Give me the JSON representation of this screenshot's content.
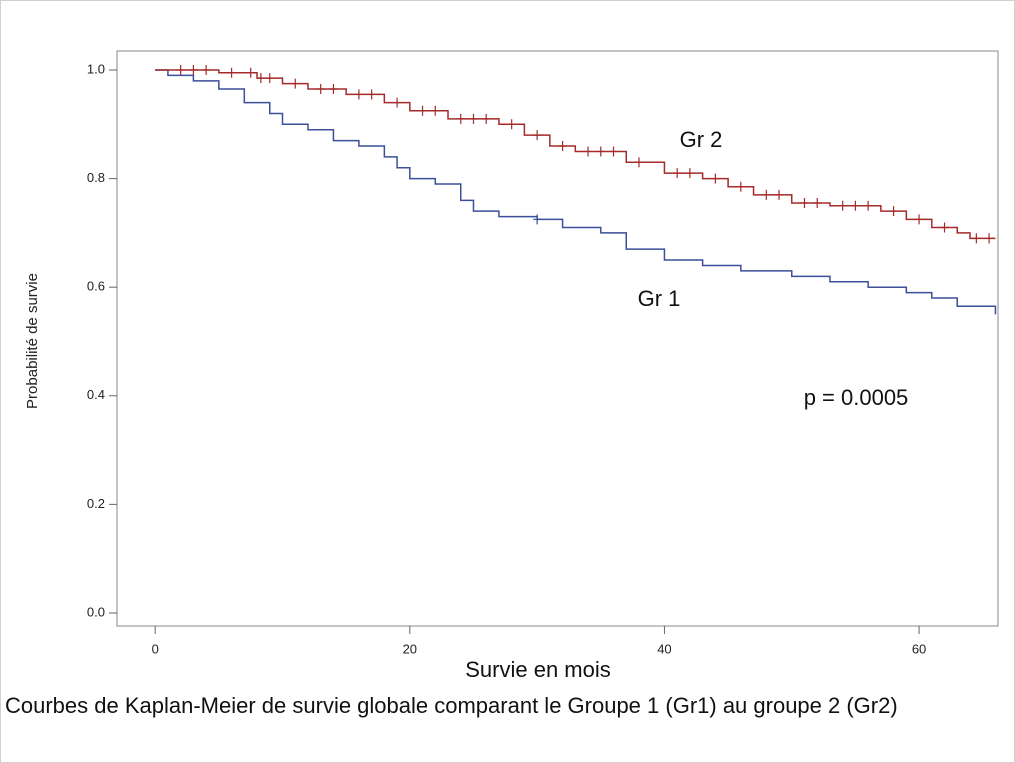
{
  "chart_data": {
    "type": "line",
    "drawstyle": "steps-post",
    "xlabel": "Survie en mois",
    "ylabel": "Probabilité de survie",
    "caption": "Courbes de Kaplan-Meier de survie globale comparant le Groupe 1 (Gr1) au groupe 2 (Gr2)",
    "annotations": [
      "Gr 2",
      "Gr 1",
      "p = 0.0005"
    ],
    "xlim": [
      -3,
      66.2
    ],
    "ylim": [
      -0.024,
      1.035
    ],
    "xticks": [
      0,
      20,
      40,
      60
    ],
    "yticks": [
      {
        "value": 0,
        "label": "0.0"
      },
      {
        "value": 0.2,
        "label": "0.2"
      },
      {
        "value": 0.4,
        "label": "0.4"
      },
      {
        "value": 0.6,
        "label": "0.6"
      },
      {
        "value": 0.8,
        "label": "0.8"
      },
      {
        "value": 1,
        "label": "1.0"
      }
    ],
    "series": [
      {
        "color": "#3b4f9a",
        "x": [
          0,
          1,
          3,
          5,
          7,
          9,
          10,
          12,
          14,
          16,
          18,
          19,
          20,
          22,
          24,
          25,
          27,
          30,
          32,
          35,
          37,
          40,
          43,
          46,
          50,
          53,
          56,
          59,
          61,
          63,
          66
        ],
        "values": [
          1.0,
          0.99,
          0.98,
          0.965,
          0.94,
          0.92,
          0.9,
          0.89,
          0.87,
          0.86,
          0.84,
          0.82,
          0.8,
          0.79,
          0.76,
          0.74,
          0.73,
          0.725,
          0.71,
          0.7,
          0.67,
          0.65,
          0.64,
          0.63,
          0.62,
          0.61,
          0.6,
          0.59,
          0.58,
          0.565,
          0.55
        ],
        "censored": [
          30
        ]
      },
      {
        "color": "#a52a2a",
        "x": [
          0,
          5,
          8,
          10,
          12,
          15,
          18,
          20,
          23,
          27,
          29,
          31,
          33,
          37,
          40,
          43,
          45,
          47,
          50,
          53,
          57,
          59,
          61,
          63,
          64,
          66
        ],
        "values": [
          1.0,
          0.995,
          0.985,
          0.975,
          0.965,
          0.955,
          0.94,
          0.925,
          0.91,
          0.9,
          0.88,
          0.86,
          0.85,
          0.83,
          0.81,
          0.8,
          0.785,
          0.77,
          0.755,
          0.75,
          0.74,
          0.725,
          0.71,
          0.7,
          0.69,
          0.69
        ],
        "censored": [
          2,
          3,
          4,
          6,
          7.5,
          8.3,
          9,
          11,
          13,
          14,
          16,
          17,
          19,
          21,
          22,
          24,
          25,
          26,
          28,
          30,
          32,
          34,
          35,
          36,
          38,
          41,
          42,
          44,
          46,
          48,
          49,
          51,
          52,
          54,
          55,
          56,
          58,
          60,
          62,
          64.5,
          65.5
        ]
      }
    ]
  }
}
